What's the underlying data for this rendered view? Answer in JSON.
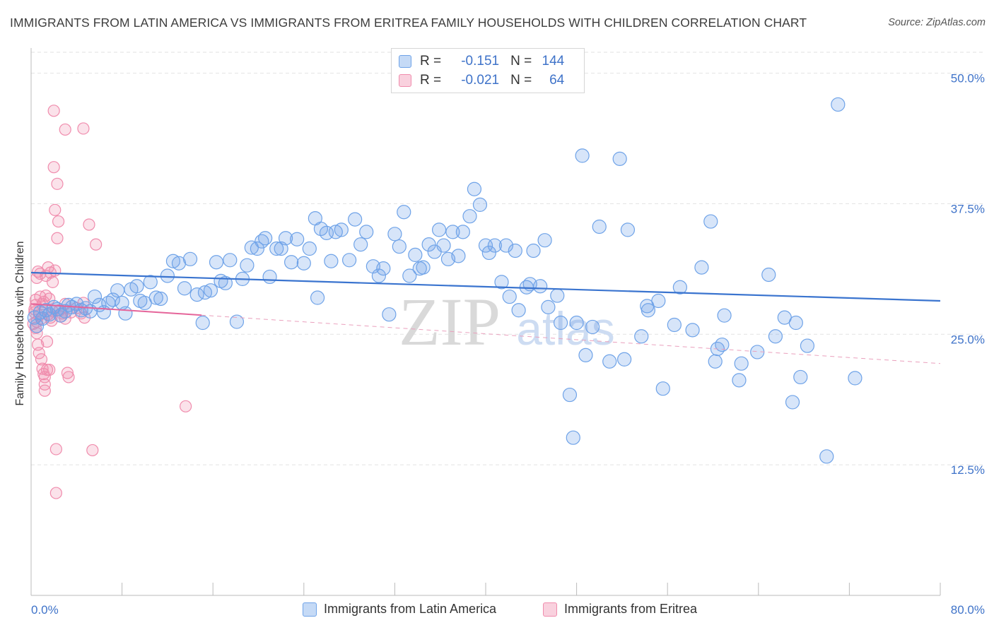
{
  "title": "IMMIGRANTS FROM LATIN AMERICA VS IMMIGRANTS FROM ERITREA FAMILY HOUSEHOLDS WITH CHILDREN CORRELATION CHART",
  "source": "Source: ZipAtlas.com",
  "watermark": {
    "zip": "ZIP",
    "atlas": "atlas"
  },
  "legend": {
    "r_label": "R =",
    "n_label": "N =",
    "rows": [
      {
        "r": "-0.151",
        "n": "144",
        "color": "#6fa3e8"
      },
      {
        "r": "-0.021",
        "n": "64",
        "color": "#f08cad"
      }
    ]
  },
  "bottom_legend": [
    "Immigrants from Latin America",
    "Immigrants from Eritrea"
  ],
  "colors": {
    "blue": "#3a74cf",
    "pink": "#e5659a",
    "axis_label": "#3f73c9"
  },
  "chart_data": {
    "type": "scatter",
    "title": "IMMIGRANTS FROM LATIN AMERICA VS IMMIGRANTS FROM ERITREA FAMILY HOUSEHOLDS WITH CHILDREN CORRELATION CHART",
    "xlabel": "",
    "ylabel": "Family Households with Children",
    "xlim": [
      0,
      80
    ],
    "ylim": [
      0,
      52
    ],
    "x_tick_labels": [
      "0.0%",
      "80.0%"
    ],
    "y_ticks": [
      12.5,
      25.0,
      37.5,
      50.0
    ],
    "y_tick_labels": [
      "12.5%",
      "25.0%",
      "37.5%",
      "50.0%"
    ],
    "grid": true,
    "series": [
      {
        "name": "Immigrants from Latin America",
        "color": "#6fa3e8",
        "points": [
          [
            0.3,
            26.6
          ],
          [
            0.5,
            25.8
          ],
          [
            0.8,
            27.1
          ],
          [
            1.0,
            26.5
          ],
          [
            1.3,
            27.3
          ],
          [
            1.6,
            26.9
          ],
          [
            2.0,
            27.6
          ],
          [
            2.3,
            27.4
          ],
          [
            2.6,
            26.8
          ],
          [
            3.0,
            27.2
          ],
          [
            3.3,
            27.8
          ],
          [
            3.6,
            27.6
          ],
          [
            4.0,
            27.9
          ],
          [
            4.4,
            27.3
          ],
          [
            4.8,
            27.5
          ],
          [
            5.2,
            27.2
          ],
          [
            5.6,
            28.6
          ],
          [
            6.0,
            27.8
          ],
          [
            6.4,
            27.1
          ],
          [
            6.8,
            28.0
          ],
          [
            7.2,
            28.3
          ],
          [
            7.6,
            29.2
          ],
          [
            8.0,
            28.0
          ],
          [
            8.3,
            27.0
          ],
          [
            8.8,
            29.3
          ],
          [
            9.3,
            29.6
          ],
          [
            9.6,
            28.2
          ],
          [
            10.0,
            28.0
          ],
          [
            10.5,
            30.0
          ],
          [
            11.0,
            28.5
          ],
          [
            11.4,
            28.4
          ],
          [
            12.0,
            30.6
          ],
          [
            12.5,
            32.0
          ],
          [
            13.0,
            31.8
          ],
          [
            13.5,
            29.4
          ],
          [
            14.0,
            32.2
          ],
          [
            14.6,
            28.8
          ],
          [
            15.1,
            26.1
          ],
          [
            15.3,
            29.0
          ],
          [
            15.8,
            29.2
          ],
          [
            16.3,
            31.9
          ],
          [
            16.7,
            30.1
          ],
          [
            17.1,
            29.9
          ],
          [
            17.5,
            32.1
          ],
          [
            18.1,
            26.2
          ],
          [
            18.6,
            30.3
          ],
          [
            19.0,
            31.6
          ],
          [
            19.4,
            33.3
          ],
          [
            19.9,
            33.2
          ],
          [
            20.3,
            33.9
          ],
          [
            20.6,
            34.2
          ],
          [
            21.0,
            30.5
          ],
          [
            21.6,
            33.2
          ],
          [
            22.0,
            33.2
          ],
          [
            22.4,
            34.2
          ],
          [
            22.9,
            31.9
          ],
          [
            23.4,
            34.1
          ],
          [
            24.0,
            31.8
          ],
          [
            24.5,
            33.2
          ],
          [
            25.0,
            36.1
          ],
          [
            25.2,
            28.5
          ],
          [
            25.5,
            35.1
          ],
          [
            26.0,
            34.7
          ],
          [
            26.4,
            32.0
          ],
          [
            26.8,
            34.8
          ],
          [
            27.3,
            35.0
          ],
          [
            28.0,
            32.1
          ],
          [
            28.5,
            36.0
          ],
          [
            29.0,
            33.6
          ],
          [
            29.5,
            34.8
          ],
          [
            30.1,
            31.5
          ],
          [
            30.6,
            30.6
          ],
          [
            31.0,
            31.3
          ],
          [
            31.5,
            26.9
          ],
          [
            32.0,
            34.6
          ],
          [
            32.4,
            33.4
          ],
          [
            32.8,
            36.7
          ],
          [
            33.3,
            30.6
          ],
          [
            33.8,
            32.6
          ],
          [
            34.2,
            31.3
          ],
          [
            34.5,
            31.4
          ],
          [
            35.0,
            33.6
          ],
          [
            35.5,
            32.9
          ],
          [
            35.9,
            35.0
          ],
          [
            36.3,
            33.5
          ],
          [
            36.7,
            32.2
          ],
          [
            37.1,
            34.8
          ],
          [
            37.6,
            32.5
          ],
          [
            38.0,
            34.8
          ],
          [
            38.6,
            36.3
          ],
          [
            39.0,
            38.9
          ],
          [
            39.5,
            37.4
          ],
          [
            40.0,
            33.5
          ],
          [
            40.3,
            32.8
          ],
          [
            40.8,
            33.5
          ],
          [
            41.4,
            30.0
          ],
          [
            41.8,
            33.5
          ],
          [
            42.1,
            28.6
          ],
          [
            42.6,
            33.0
          ],
          [
            42.9,
            27.3
          ],
          [
            43.6,
            29.5
          ],
          [
            43.9,
            29.8
          ],
          [
            44.2,
            33.0
          ],
          [
            44.8,
            29.6
          ],
          [
            45.2,
            34.0
          ],
          [
            45.5,
            27.6
          ],
          [
            46.3,
            28.7
          ],
          [
            46.6,
            26.1
          ],
          [
            47.4,
            19.2
          ],
          [
            47.7,
            15.1
          ],
          [
            48.0,
            26.1
          ],
          [
            48.5,
            42.1
          ],
          [
            48.8,
            23.0
          ],
          [
            49.4,
            25.7
          ],
          [
            50.0,
            35.3
          ],
          [
            50.9,
            22.4
          ],
          [
            51.8,
            41.8
          ],
          [
            52.2,
            22.6
          ],
          [
            52.5,
            35.0
          ],
          [
            53.7,
            24.8
          ],
          [
            54.2,
            27.7
          ],
          [
            54.3,
            27.3
          ],
          [
            55.2,
            28.2
          ],
          [
            55.6,
            19.8
          ],
          [
            56.6,
            25.9
          ],
          [
            57.1,
            29.5
          ],
          [
            58.2,
            25.4
          ],
          [
            59.0,
            31.4
          ],
          [
            59.8,
            35.8
          ],
          [
            60.2,
            22.4
          ],
          [
            60.4,
            23.6
          ],
          [
            60.8,
            24.0
          ],
          [
            61.0,
            26.8
          ],
          [
            62.3,
            20.6
          ],
          [
            62.5,
            22.2
          ],
          [
            63.9,
            23.3
          ],
          [
            64.9,
            30.7
          ],
          [
            65.5,
            24.8
          ],
          [
            66.3,
            26.6
          ],
          [
            67.0,
            18.5
          ],
          [
            67.3,
            26.1
          ],
          [
            67.7,
            20.9
          ],
          [
            68.3,
            23.9
          ],
          [
            70.0,
            13.3
          ],
          [
            71.0,
            47.0
          ],
          [
            72.5,
            20.8
          ]
        ]
      },
      {
        "name": "Immigrants from Eritrea",
        "color": "#f08cad",
        "points": [
          [
            0.3,
            27.4
          ],
          [
            0.3,
            27.1
          ],
          [
            0.4,
            27.8
          ],
          [
            0.4,
            28.3
          ],
          [
            0.5,
            26.2
          ],
          [
            0.5,
            25.1
          ],
          [
            0.5,
            30.4
          ],
          [
            0.6,
            31.0
          ],
          [
            0.6,
            24.0
          ],
          [
            0.7,
            23.2
          ],
          [
            0.7,
            26.8
          ],
          [
            0.8,
            28.6
          ],
          [
            0.8,
            30.8
          ],
          [
            0.9,
            26.5
          ],
          [
            0.9,
            22.6
          ],
          [
            1.0,
            27.9
          ],
          [
            1.0,
            21.7
          ],
          [
            1.1,
            21.2
          ],
          [
            1.1,
            28.1
          ],
          [
            1.2,
            20.9
          ],
          [
            1.2,
            20.2
          ],
          [
            1.2,
            19.6
          ],
          [
            1.3,
            28.7
          ],
          [
            1.3,
            30.6
          ],
          [
            1.4,
            21.6
          ],
          [
            1.4,
            24.3
          ],
          [
            1.5,
            26.9
          ],
          [
            1.5,
            31.4
          ],
          [
            1.6,
            21.6
          ],
          [
            1.6,
            28.4
          ],
          [
            1.7,
            30.9
          ],
          [
            1.7,
            26.6
          ],
          [
            1.8,
            26.3
          ],
          [
            1.9,
            27.2
          ],
          [
            1.9,
            30.0
          ],
          [
            2.0,
            46.4
          ],
          [
            2.0,
            41.0
          ],
          [
            2.1,
            36.9
          ],
          [
            2.1,
            31.1
          ],
          [
            2.2,
            14.0
          ],
          [
            2.2,
            9.8
          ],
          [
            2.3,
            39.4
          ],
          [
            2.3,
            34.2
          ],
          [
            2.4,
            35.8
          ],
          [
            2.5,
            27.3
          ],
          [
            2.6,
            26.7
          ],
          [
            2.7,
            27.0
          ],
          [
            3.0,
            27.9
          ],
          [
            3.0,
            44.6
          ],
          [
            3.0,
            26.5
          ],
          [
            3.2,
            21.3
          ],
          [
            3.3,
            20.9
          ],
          [
            3.5,
            27.1
          ],
          [
            4.0,
            27.5
          ],
          [
            4.4,
            27.0
          ],
          [
            4.6,
            44.7
          ],
          [
            4.6,
            28.0
          ],
          [
            4.7,
            26.6
          ],
          [
            5.1,
            35.5
          ],
          [
            5.4,
            13.9
          ],
          [
            5.7,
            33.6
          ],
          [
            13.6,
            18.1
          ],
          [
            0.2,
            26.0
          ],
          [
            0.4,
            25.6
          ]
        ]
      }
    ],
    "trendlines": [
      {
        "series": "Immigrants from Latin America",
        "x": [
          0,
          80
        ],
        "y": [
          30.9,
          28.2
        ]
      },
      {
        "series": "Immigrants from Eritrea",
        "x": [
          0,
          80
        ],
        "y": [
          27.9,
          22.2
        ]
      }
    ]
  }
}
